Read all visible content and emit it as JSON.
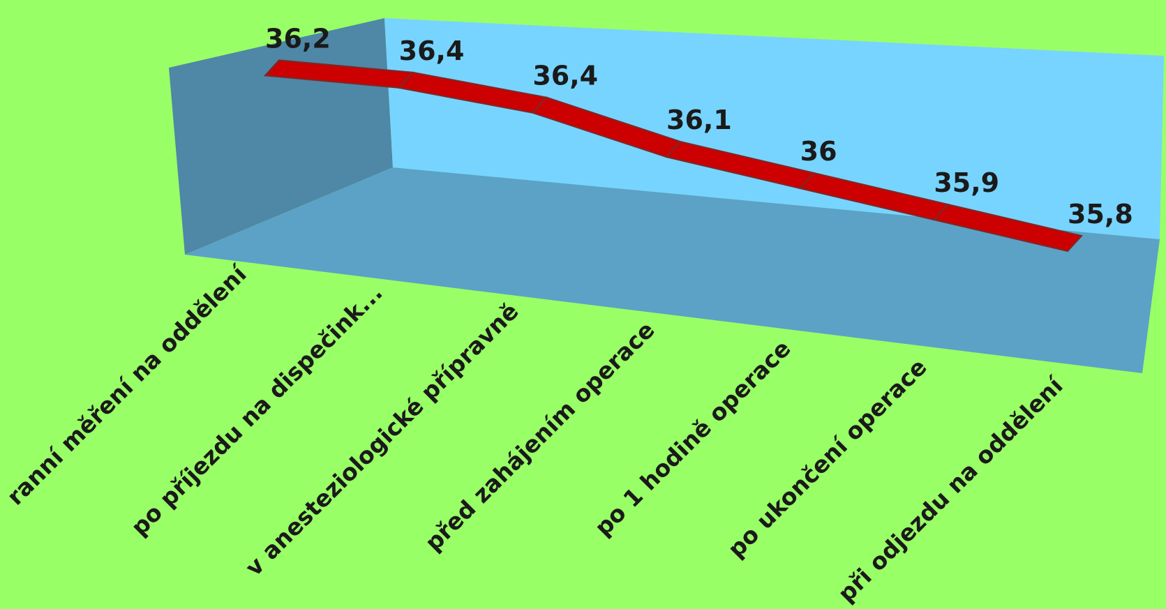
{
  "chart_data": {
    "type": "line",
    "style": "3d-ribbon",
    "categories": [
      "ranní měření na oddělení",
      "po příjezdu na dispečink...",
      "v anesteziologické přípravně",
      "před zahájením operace",
      "po 1 hodině operace",
      "po ukončení operace",
      "při odjezdu na oddělení"
    ],
    "values": [
      36.2,
      36.4,
      36.4,
      36.1,
      36,
      35.9,
      35.8
    ],
    "data_labels": [
      "36,2",
      "36,4",
      "36,4",
      "36,1",
      "36",
      "35,9",
      "35,8"
    ],
    "ylim": [
      35.8,
      36.4
    ],
    "grid": false,
    "legend": "none",
    "colors": {
      "background": "#99ff66",
      "back_wall": "#77d4ff",
      "side_wall": "#4f87a6",
      "floor": "#5ba2c6",
      "ribbon": "#cc0000",
      "ribbon_edge": "#7a2a2a",
      "text": "#1a1a1a"
    }
  }
}
